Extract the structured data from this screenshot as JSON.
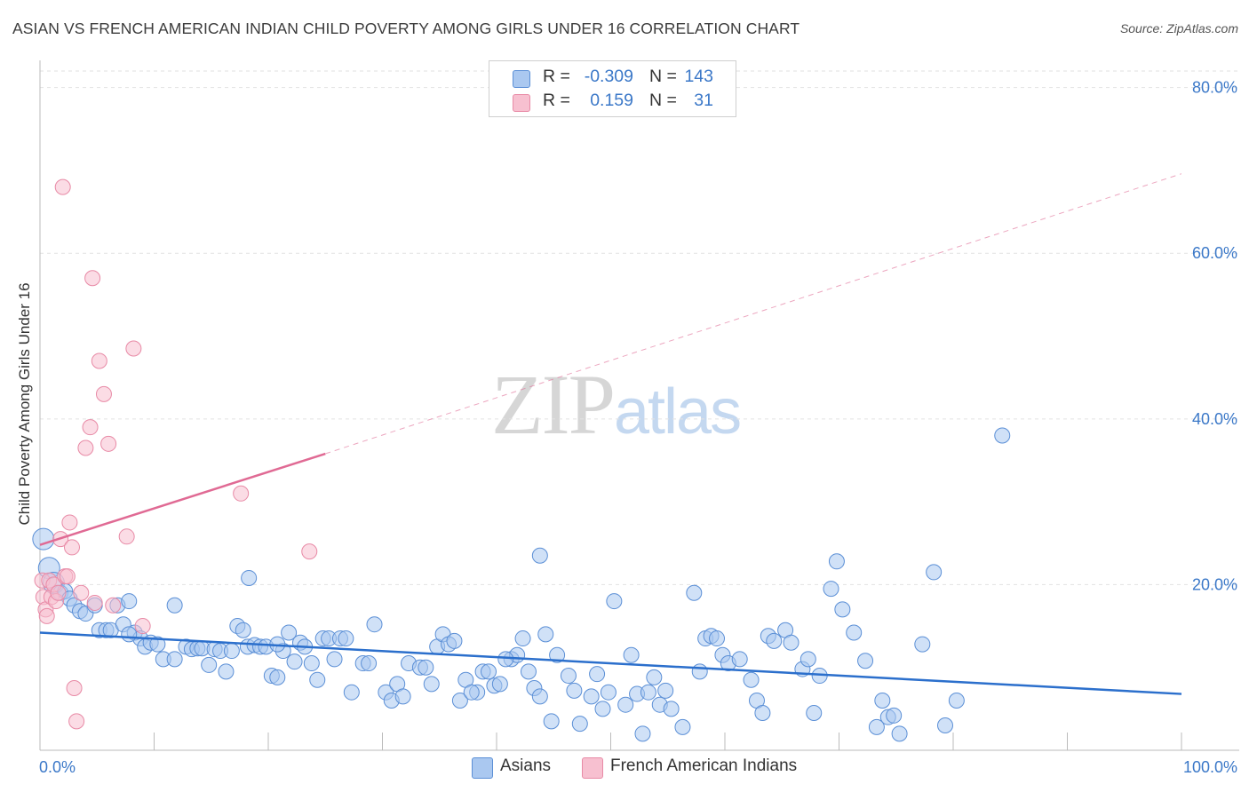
{
  "title": "ASIAN VS FRENCH AMERICAN INDIAN CHILD POVERTY AMONG GIRLS UNDER 16 CORRELATION CHART",
  "source": "Source: ZipAtlas.com",
  "watermark": {
    "zip": "ZIP",
    "atlas": "atlas"
  },
  "legend": {
    "rows": [
      {
        "r_label": "R =",
        "r_value": "-0.309",
        "n_label": "N =",
        "n_value": "143",
        "color": "#aac8f0",
        "border": "#5b8fd6"
      },
      {
        "r_label": "R =",
        "r_value": "0.159",
        "n_label": "N =",
        "n_value": "31",
        "color": "#f7c0d0",
        "border": "#e88aa6"
      }
    ]
  },
  "bottom_legend": [
    {
      "label": "Asians",
      "color": "#aac8f0",
      "border": "#5b8fd6"
    },
    {
      "label": "French American Indians",
      "color": "#f7c0d0",
      "border": "#e88aa6"
    }
  ],
  "chart_data": {
    "type": "scatter",
    "title": "ASIAN VS FRENCH AMERICAN INDIAN CHILD POVERTY AMONG GIRLS UNDER 16 CORRELATION CHART",
    "xlabel": "",
    "ylabel": "Child Poverty Among Girls Under 16",
    "xlim": [
      0,
      100
    ],
    "ylim": [
      0,
      82
    ],
    "x_tick_labels": [
      "0.0%",
      "100.0%"
    ],
    "y_ticks": [
      20,
      40,
      60,
      80
    ],
    "y_tick_labels": [
      "20.0%",
      "40.0%",
      "60.0%",
      "80.0%"
    ],
    "grid": true,
    "legend_position": "top-center",
    "colors": {
      "asians": "#5b8fd6",
      "asians_fill": "#aac8f0",
      "french": "#e88aa6",
      "french_fill": "#f7c0d0",
      "asian_trend": "#2b6fcc",
      "french_trend": "#e06a94"
    },
    "series": [
      {
        "name": "Asians",
        "trend": {
          "x": [
            0,
            100
          ],
          "y": [
            14.2,
            6.8
          ],
          "style": "solid"
        },
        "points": [
          [
            0.3,
            25.5
          ],
          [
            0.8,
            22.0
          ],
          [
            1.2,
            20.2
          ],
          [
            1.8,
            19.0
          ],
          [
            2.2,
            19.2
          ],
          [
            2.6,
            18.3
          ],
          [
            3.0,
            17.5
          ],
          [
            3.5,
            16.8
          ],
          [
            4.0,
            16.5
          ],
          [
            4.8,
            17.5
          ],
          [
            5.2,
            14.5
          ],
          [
            5.8,
            14.5
          ],
          [
            6.2,
            14.5
          ],
          [
            6.8,
            17.5
          ],
          [
            7.3,
            15.2
          ],
          [
            7.8,
            18.0
          ],
          [
            8.3,
            14.2
          ],
          [
            8.8,
            13.5
          ],
          [
            9.2,
            12.5
          ],
          [
            9.7,
            13.0
          ],
          [
            10.3,
            12.8
          ],
          [
            10.8,
            11.0
          ],
          [
            11.8,
            11.0
          ],
          [
            11.8,
            17.5
          ],
          [
            12.8,
            12.5
          ],
          [
            13.3,
            12.2
          ],
          [
            13.8,
            12.3
          ],
          [
            14.2,
            12.3
          ],
          [
            14.8,
            10.3
          ],
          [
            15.3,
            12.2
          ],
          [
            15.8,
            12.0
          ],
          [
            16.3,
            9.5
          ],
          [
            16.8,
            12.0
          ],
          [
            17.3,
            15.0
          ],
          [
            17.8,
            14.5
          ],
          [
            18.2,
            12.5
          ],
          [
            18.8,
            12.7
          ],
          [
            19.3,
            12.5
          ],
          [
            19.8,
            12.5
          ],
          [
            20.3,
            9.0
          ],
          [
            20.8,
            8.8
          ],
          [
            21.3,
            12.0
          ],
          [
            21.8,
            14.2
          ],
          [
            22.3,
            10.7
          ],
          [
            22.8,
            13.0
          ],
          [
            23.2,
            12.5
          ],
          [
            23.8,
            10.5
          ],
          [
            24.3,
            8.5
          ],
          [
            24.8,
            13.5
          ],
          [
            25.3,
            13.5
          ],
          [
            26.3,
            13.5
          ],
          [
            26.8,
            13.5
          ],
          [
            27.3,
            7.0
          ],
          [
            28.3,
            10.5
          ],
          [
            28.8,
            10.5
          ],
          [
            29.3,
            15.2
          ],
          [
            30.3,
            7.0
          ],
          [
            30.8,
            6.0
          ],
          [
            31.3,
            8.0
          ],
          [
            32.3,
            10.5
          ],
          [
            33.3,
            10.0
          ],
          [
            33.8,
            10.0
          ],
          [
            34.3,
            8.0
          ],
          [
            34.8,
            12.5
          ],
          [
            35.3,
            14.0
          ],
          [
            35.8,
            12.8
          ],
          [
            36.3,
            13.2
          ],
          [
            36.8,
            6.0
          ],
          [
            37.3,
            8.5
          ],
          [
            38.3,
            7.0
          ],
          [
            38.8,
            9.5
          ],
          [
            39.3,
            9.5
          ],
          [
            39.8,
            7.8
          ],
          [
            40.3,
            8.0
          ],
          [
            41.3,
            11.0
          ],
          [
            41.8,
            11.5
          ],
          [
            42.3,
            13.5
          ],
          [
            42.8,
            9.5
          ],
          [
            43.3,
            7.5
          ],
          [
            43.8,
            6.5
          ],
          [
            44.3,
            14.0
          ],
          [
            44.8,
            3.5
          ],
          [
            45.3,
            11.5
          ],
          [
            46.3,
            9.0
          ],
          [
            46.8,
            7.2
          ],
          [
            47.3,
            3.2
          ],
          [
            48.3,
            6.5
          ],
          [
            48.8,
            9.2
          ],
          [
            49.3,
            5.0
          ],
          [
            49.8,
            7.0
          ],
          [
            50.3,
            18.0
          ],
          [
            51.3,
            5.5
          ],
          [
            51.8,
            11.5
          ],
          [
            52.3,
            6.8
          ],
          [
            52.8,
            2.0
          ],
          [
            53.3,
            7.0
          ],
          [
            53.8,
            8.8
          ],
          [
            54.3,
            5.5
          ],
          [
            54.8,
            7.2
          ],
          [
            55.3,
            5.0
          ],
          [
            56.3,
            2.8
          ],
          [
            57.3,
            19.0
          ],
          [
            57.8,
            9.5
          ],
          [
            58.3,
            13.5
          ],
          [
            58.8,
            13.8
          ],
          [
            59.3,
            13.5
          ],
          [
            59.8,
            11.5
          ],
          [
            60.3,
            10.5
          ],
          [
            61.3,
            11.0
          ],
          [
            62.3,
            8.5
          ],
          [
            62.8,
            6.0
          ],
          [
            63.3,
            4.5
          ],
          [
            63.8,
            13.8
          ],
          [
            64.3,
            13.2
          ],
          [
            65.3,
            14.5
          ],
          [
            65.8,
            13.0
          ],
          [
            66.8,
            9.8
          ],
          [
            67.3,
            11.0
          ],
          [
            67.8,
            4.5
          ],
          [
            68.3,
            9.0
          ],
          [
            69.3,
            19.5
          ],
          [
            69.8,
            22.8
          ],
          [
            70.3,
            17.0
          ],
          [
            71.3,
            14.2
          ],
          [
            72.3,
            10.8
          ],
          [
            73.3,
            2.8
          ],
          [
            73.8,
            6.0
          ],
          [
            74.3,
            4.0
          ],
          [
            74.8,
            4.2
          ],
          [
            75.3,
            2.0
          ],
          [
            77.3,
            12.8
          ],
          [
            78.3,
            21.5
          ],
          [
            79.3,
            3.0
          ],
          [
            80.3,
            6.0
          ],
          [
            84.3,
            38.0
          ],
          [
            43.8,
            23.5
          ],
          [
            40.8,
            11.0
          ],
          [
            25.8,
            11.0
          ],
          [
            18.3,
            20.8
          ],
          [
            7.8,
            14.0
          ],
          [
            20.8,
            12.8
          ],
          [
            31.8,
            6.5
          ],
          [
            37.8,
            7.0
          ]
        ]
      },
      {
        "name": "French American Indians",
        "trend": {
          "x": [
            0,
            25
          ],
          "y": [
            24.8,
            35.8
          ],
          "style": "solid",
          "extended": {
            "x": [
              25,
              100
            ],
            "y": [
              35.8,
              69.6
            ],
            "style": "dashed"
          }
        },
        "points": [
          [
            0.2,
            20.5
          ],
          [
            0.3,
            18.5
          ],
          [
            0.5,
            17.0
          ],
          [
            0.6,
            16.2
          ],
          [
            0.8,
            20.5
          ],
          [
            1.0,
            18.5
          ],
          [
            1.2,
            20.0
          ],
          [
            1.4,
            18.0
          ],
          [
            1.6,
            19.0
          ],
          [
            1.8,
            25.5
          ],
          [
            2.0,
            68.0
          ],
          [
            2.2,
            21.0
          ],
          [
            2.4,
            21.0
          ],
          [
            2.6,
            27.5
          ],
          [
            2.8,
            24.5
          ],
          [
            3.0,
            7.5
          ],
          [
            3.2,
            3.5
          ],
          [
            3.6,
            19.0
          ],
          [
            4.0,
            36.5
          ],
          [
            4.4,
            39.0
          ],
          [
            4.6,
            57.0
          ],
          [
            4.8,
            17.8
          ],
          [
            5.2,
            47.0
          ],
          [
            5.6,
            43.0
          ],
          [
            6.0,
            37.0
          ],
          [
            6.4,
            17.5
          ],
          [
            7.6,
            25.8
          ],
          [
            8.2,
            48.5
          ],
          [
            9.0,
            15.0
          ],
          [
            17.6,
            31.0
          ],
          [
            23.6,
            24.0
          ]
        ]
      }
    ]
  }
}
